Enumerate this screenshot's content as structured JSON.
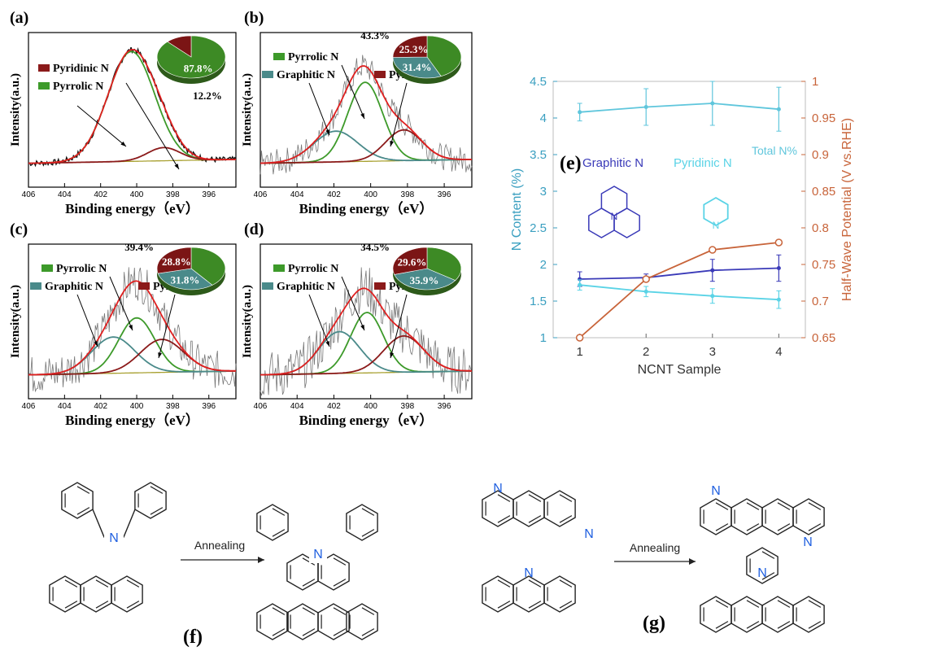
{
  "chart_data": [
    {
      "panel": "(a)",
      "type": "line",
      "xlabel": "Binding energy（eV）",
      "ylabel": "Intensity(a.u.)",
      "x_ticks": [
        "406",
        "404",
        "402",
        "400",
        "398",
        "396"
      ],
      "xlim": [
        406,
        394.5
      ],
      "legend": [
        "Pyridinic N",
        "Pyrrolic N"
      ],
      "pie": [
        {
          "label": "87.8%",
          "value": 87.8,
          "color": "#3d8a25"
        },
        {
          "label": "12.2%",
          "value": 12.2,
          "color": "#7b1515"
        }
      ],
      "peaks": [
        {
          "name": "Pyrrolic N",
          "center": 400.3,
          "height": 1.0,
          "width": 1.3,
          "color": "#3d9a2a"
        },
        {
          "name": "Pyridinic N",
          "center": 398.5,
          "height": 0.12,
          "width": 0.9,
          "color": "#8b1a1a"
        }
      ],
      "noise": 0.025
    },
    {
      "panel": "(b)",
      "type": "line",
      "xlabel": "Binding energy（eV）",
      "ylabel": "Intensity(a.u.)",
      "x_ticks": [
        "406",
        "404",
        "402",
        "400",
        "398",
        "396"
      ],
      "xlim": [
        406,
        394.5
      ],
      "legend": [
        "Pyrrolic N",
        "Graphitic N",
        "Pyridinic N"
      ],
      "pie": [
        {
          "label": "43.3%",
          "value": 43.3,
          "color": "#3d8a25"
        },
        {
          "label": "31.4%",
          "value": 31.4,
          "color": "#4a8a8a"
        },
        {
          "label": "25.3%",
          "value": 25.3,
          "color": "#7b1515"
        }
      ],
      "peaks": [
        {
          "name": "Pyrrolic N",
          "center": 400.3,
          "height": 0.72,
          "width": 0.95,
          "color": "#3d9a2a"
        },
        {
          "name": "Graphitic N",
          "center": 401.9,
          "height": 0.28,
          "width": 1.2,
          "color": "#4a8a8a"
        },
        {
          "name": "Pyridinic N",
          "center": 398.2,
          "height": 0.28,
          "width": 1.0,
          "color": "#8b1a1a"
        }
      ],
      "noise": 0.12
    },
    {
      "panel": "(c)",
      "type": "line",
      "xlabel": "Binding energy（eV）",
      "ylabel": "Intensity(a.u.)",
      "x_ticks": [
        "406",
        "404",
        "402",
        "400",
        "398",
        "396"
      ],
      "xlim": [
        406,
        394.5
      ],
      "legend": [
        "Pyrrolic N",
        "Graphitic N",
        "Pyridinic N"
      ],
      "pie": [
        {
          "label": "39.4%",
          "value": 39.4,
          "color": "#3d8a25"
        },
        {
          "label": "31.8%",
          "value": 31.8,
          "color": "#4a8a8a"
        },
        {
          "label": "28.8%",
          "value": 28.8,
          "color": "#7b1515"
        }
      ],
      "peaks": [
        {
          "name": "Pyrrolic N",
          "center": 400.0,
          "height": 0.5,
          "width": 1.0,
          "color": "#3d9a2a"
        },
        {
          "name": "Graphitic N",
          "center": 401.3,
          "height": 0.33,
          "width": 1.2,
          "color": "#4a8a8a"
        },
        {
          "name": "Pyridinic N",
          "center": 398.6,
          "height": 0.3,
          "width": 1.2,
          "color": "#8b1a1a"
        }
      ],
      "noise": 0.18
    },
    {
      "panel": "(d)",
      "type": "line",
      "xlabel": "Binding energy（eV）",
      "ylabel": "Intensity(a.u.)",
      "x_ticks": [
        "406",
        "404",
        "402",
        "400",
        "398",
        "396"
      ],
      "xlim": [
        406,
        394.5
      ],
      "legend": [
        "Pyrrolic N",
        "Graphitic N",
        "Pyridinic N"
      ],
      "pie": [
        {
          "label": "34.5%",
          "value": 34.5,
          "color": "#3d8a25"
        },
        {
          "label": "35.9%",
          "value": 35.9,
          "color": "#4a8a8a"
        },
        {
          "label": "29.6%",
          "value": 29.6,
          "color": "#7b1515"
        }
      ],
      "peaks": [
        {
          "name": "Pyrrolic N",
          "center": 400.2,
          "height": 0.55,
          "width": 0.9,
          "color": "#3d9a2a"
        },
        {
          "name": "Graphitic N",
          "center": 401.7,
          "height": 0.38,
          "width": 1.1,
          "color": "#4a8a8a"
        },
        {
          "name": "Pyridinic N",
          "center": 398.2,
          "height": 0.33,
          "width": 1.1,
          "color": "#8b1a1a"
        }
      ],
      "noise": 0.22
    },
    {
      "panel": "(e)",
      "type": "line",
      "xlabel": "NCNT Sample",
      "ylabel": "N Content (%)",
      "y2label": "Half-Wave Potential (V vs.RHE)",
      "x": [
        1,
        2,
        3,
        4
      ],
      "xlim": [
        0.6,
        4.4
      ],
      "ylim": [
        1,
        4.5
      ],
      "y2lim": [
        0.65,
        1.0
      ],
      "y_ticks": [
        "1",
        "1.5",
        "2",
        "2.5",
        "3",
        "3.5",
        "4",
        "4.5"
      ],
      "y2_ticks": [
        "0.65",
        "0.7",
        "0.75",
        "0.8",
        "0.85",
        "0.9",
        "0.95",
        "1"
      ],
      "series": [
        {
          "name": "Total N%",
          "values": [
            4.08,
            4.15,
            4.2,
            4.12
          ],
          "errors": [
            0.12,
            0.25,
            0.3,
            0.3
          ],
          "color": "#5fc6dc",
          "axis": "left"
        },
        {
          "name": "Graphitic N",
          "values": [
            1.8,
            1.82,
            1.92,
            1.95
          ],
          "errors": [
            0.1,
            0.05,
            0.15,
            0.18
          ],
          "color": "#3a3ab8",
          "axis": "left"
        },
        {
          "name": "Pyridinic N",
          "values": [
            1.72,
            1.63,
            1.57,
            1.52
          ],
          "errors": [
            0.07,
            0.07,
            0.1,
            0.12
          ],
          "color": "#5ad3e6",
          "axis": "left"
        },
        {
          "values": [
            0.65,
            0.73,
            0.77,
            0.78
          ],
          "color": "#c8643a",
          "axis": "right"
        }
      ]
    }
  ],
  "labels": {
    "a": "(a)",
    "b": "(b)",
    "c": "(c)",
    "d": "(d)",
    "e": "(e)",
    "f": "(f)",
    "g": "(g)",
    "annealing_f": "Annealing",
    "annealing_g": "Annealing",
    "atom_n": "N"
  }
}
